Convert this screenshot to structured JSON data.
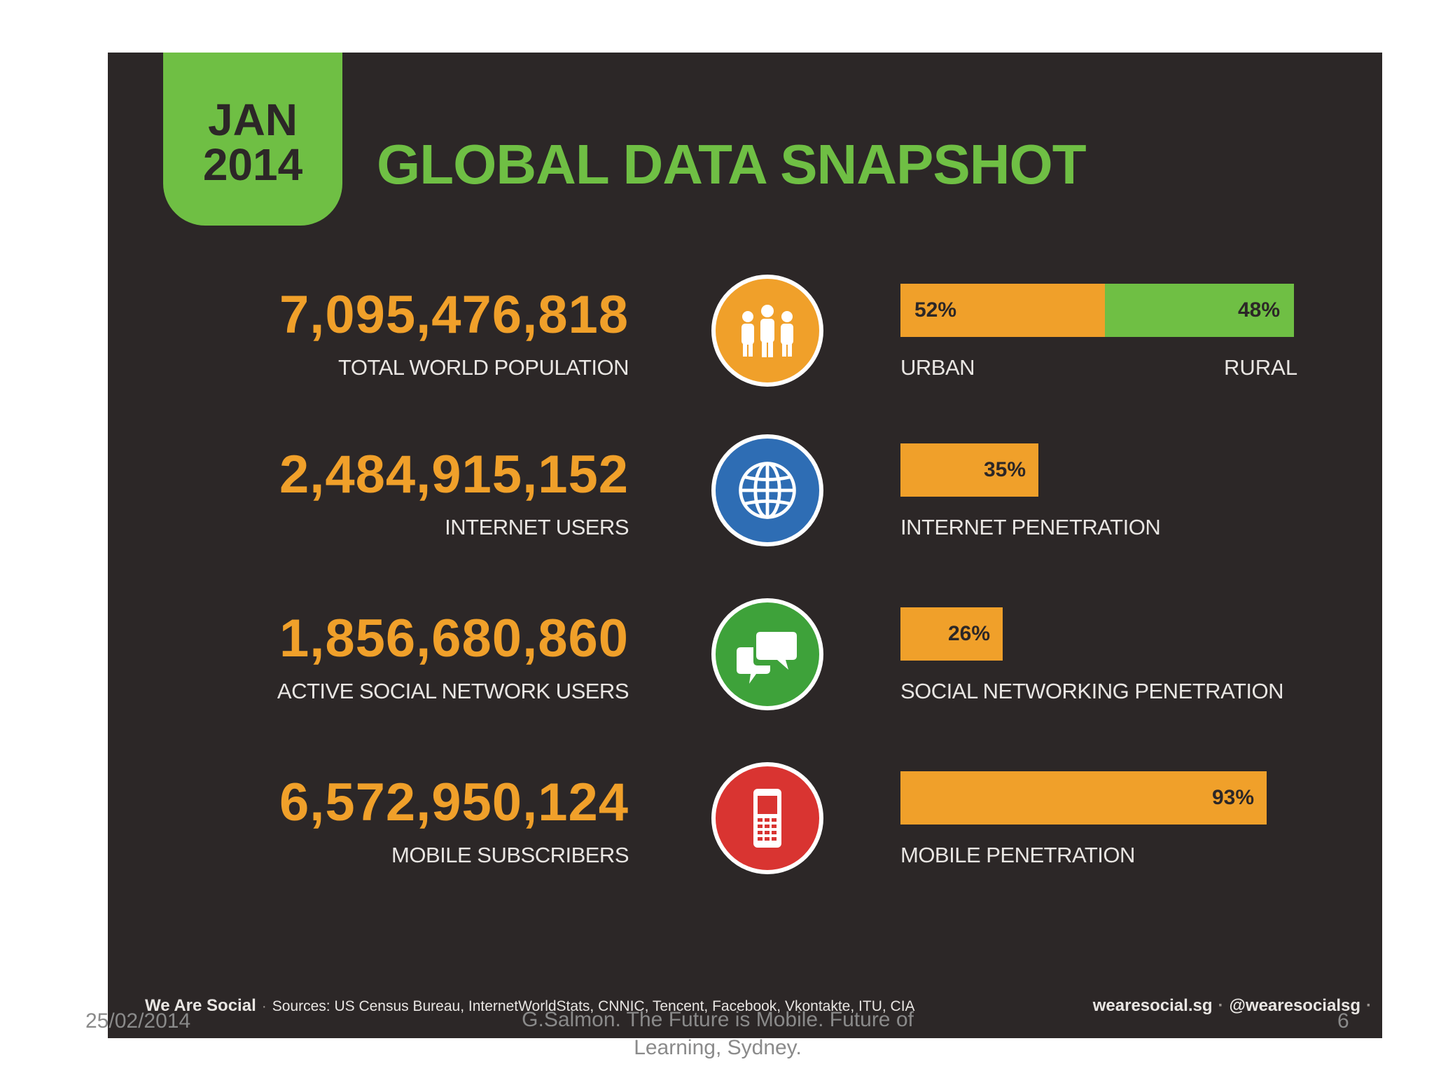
{
  "header": {
    "date_month": "JAN",
    "date_year": "2014",
    "title": "GLOBAL DATA SNAPSHOT"
  },
  "stats": [
    {
      "value": "7,095,476,818",
      "label": "TOTAL WORLD POPULATION",
      "icon": "people-icon",
      "icon_color": "#f0a02a",
      "bar": {
        "pct_label": "52%",
        "fraction": 0.52,
        "rest_label": "48%",
        "left_label": "URBAN",
        "right_label": "RURAL"
      }
    },
    {
      "value": "2,484,915,152",
      "label": "INTERNET USERS",
      "icon": "globe-icon",
      "icon_color": "#2e6db4",
      "bar": {
        "pct_label": "35%",
        "fraction": 0.35,
        "left_label": "INTERNET PENETRATION"
      }
    },
    {
      "value": "1,856,680,860",
      "label": "ACTIVE SOCIAL NETWORK USERS",
      "icon": "chat-bubbles-icon",
      "icon_color": "#3ea23a",
      "bar": {
        "pct_label": "26%",
        "fraction": 0.26,
        "left_label": "SOCIAL NETWORKING PENETRATION"
      }
    },
    {
      "value": "6,572,950,124",
      "label": "MOBILE SUBSCRIBERS",
      "icon": "mobile-phone-icon",
      "icon_color": "#d93431",
      "bar": {
        "pct_label": "93%",
        "fraction": 0.93,
        "left_label": "MOBILE PENETRATION"
      }
    }
  ],
  "footer": {
    "brand": "We Are Social",
    "sources": "Sources: US Census Bureau, InternetWorldStats, CNNIC, Tencent, Facebook, Vkontakte, ITU, CIA",
    "site": "wearesocial.sg",
    "handle": "@wearesocialsg"
  },
  "slide": {
    "date": "25/02/2014",
    "caption": "G.Salmon. The Future is Mobile. Future of Learning, Sydney.",
    "number": "6"
  },
  "colors": {
    "background": "#2c2727",
    "accent_green": "#6fbf44",
    "accent_orange": "#f0a02a"
  }
}
